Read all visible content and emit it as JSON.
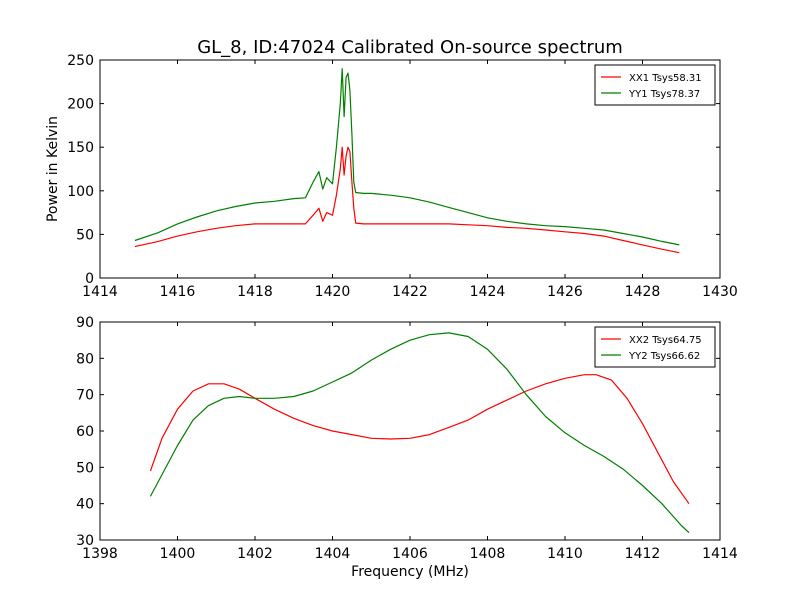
{
  "title": "GL_8, ID:47024 Calibrated On-source spectrum",
  "colors": {
    "XX": "#ff0000",
    "YY": "#008000"
  },
  "chart_data": [
    {
      "type": "line",
      "xlabel": "",
      "ylabel": "Power in Kelvin",
      "xlim": [
        1414,
        1430
      ],
      "ylim": [
        0,
        250
      ],
      "xticks": [
        "1414",
        "1416",
        "1418",
        "1420",
        "1422",
        "1424",
        "1426",
        "1428",
        "1430"
      ],
      "yticks": [
        "0",
        "50",
        "100",
        "150",
        "200",
        "250"
      ],
      "legend_position": "top-right",
      "series": [
        {
          "name": "XX1 Tsys58.31",
          "color": "#ff0000",
          "x": [
            1414.9,
            1415.5,
            1416,
            1416.5,
            1417,
            1417.5,
            1418,
            1418.5,
            1419,
            1419.3,
            1419.5,
            1419.65,
            1419.75,
            1419.85,
            1420.0,
            1420.1,
            1420.2,
            1420.25,
            1420.3,
            1420.35,
            1420.4,
            1420.45,
            1420.5,
            1420.55,
            1420.6,
            1420.8,
            1421,
            1421.5,
            1422,
            1422.5,
            1423,
            1423.5,
            1424,
            1424.5,
            1425,
            1425.5,
            1426,
            1426.5,
            1427,
            1427.5,
            1428,
            1428.5,
            1428.95
          ],
          "y": [
            36,
            42,
            48,
            53,
            57,
            60,
            62,
            62,
            62,
            62,
            72,
            80,
            65,
            75,
            72,
            95,
            125,
            150,
            118,
            140,
            150,
            145,
            110,
            80,
            63,
            62,
            62,
            62,
            62,
            62,
            62,
            61,
            60,
            58,
            57,
            55,
            53,
            51,
            48,
            43,
            38,
            33,
            29
          ]
        },
        {
          "name": "YY1 Tsys78.37",
          "color": "#008000",
          "x": [
            1414.9,
            1415.5,
            1416,
            1416.5,
            1417,
            1417.5,
            1418,
            1418.5,
            1419,
            1419.3,
            1419.5,
            1419.65,
            1419.75,
            1419.85,
            1420.0,
            1420.1,
            1420.2,
            1420.25,
            1420.3,
            1420.35,
            1420.4,
            1420.45,
            1420.5,
            1420.55,
            1420.6,
            1420.8,
            1421,
            1421.5,
            1422,
            1422.5,
            1423,
            1423.5,
            1424,
            1424.5,
            1425,
            1425.5,
            1426,
            1426.5,
            1427,
            1427.5,
            1428,
            1428.5,
            1428.95
          ],
          "y": [
            43,
            52,
            62,
            70,
            77,
            82,
            86,
            88,
            91,
            92,
            110,
            122,
            102,
            115,
            108,
            150,
            200,
            240,
            185,
            230,
            235,
            215,
            165,
            110,
            98,
            97,
            97,
            95,
            92,
            87,
            81,
            75,
            69,
            65,
            62,
            60,
            59,
            57,
            55,
            51,
            47,
            42,
            38
          ]
        }
      ]
    },
    {
      "type": "line",
      "xlabel": "Frequency (MHz)",
      "ylabel": "",
      "xlim": [
        1398,
        1414
      ],
      "ylim": [
        30,
        90
      ],
      "xticks": [
        "1398",
        "1400",
        "1402",
        "1404",
        "1406",
        "1408",
        "1410",
        "1412",
        "1414"
      ],
      "yticks": [
        "30",
        "40",
        "50",
        "60",
        "70",
        "80",
        "90"
      ],
      "legend_position": "top-right",
      "series": [
        {
          "name": "XX2 Tsys64.75",
          "color": "#ff0000",
          "x": [
            1399.3,
            1399.6,
            1400,
            1400.4,
            1400.8,
            1401.2,
            1401.6,
            1402,
            1402.5,
            1403,
            1403.5,
            1404,
            1404.5,
            1405,
            1405.5,
            1406,
            1406.5,
            1407,
            1407.5,
            1408,
            1408.5,
            1409,
            1409.5,
            1410,
            1410.5,
            1410.8,
            1411.2,
            1411.6,
            1412,
            1412.4,
            1412.8,
            1413.2
          ],
          "y": [
            49,
            58,
            66,
            71,
            73,
            73,
            71.5,
            69,
            66,
            63.5,
            61.5,
            60,
            59,
            58,
            57.8,
            58,
            59,
            61,
            63,
            66,
            68.5,
            71,
            73,
            74.5,
            75.5,
            75.5,
            74,
            69,
            62,
            54,
            46,
            40
          ]
        },
        {
          "name": "YY2 Tsys66.62",
          "color": "#008000",
          "x": [
            1399.3,
            1399.6,
            1400,
            1400.4,
            1400.8,
            1401.2,
            1401.6,
            1402,
            1402.5,
            1403,
            1403.5,
            1404,
            1404.5,
            1405,
            1405.5,
            1406,
            1406.5,
            1407,
            1407.5,
            1408,
            1408.5,
            1409,
            1409.5,
            1410,
            1410.5,
            1411,
            1411.5,
            1412,
            1412.5,
            1413,
            1413.2
          ],
          "y": [
            42,
            48,
            56,
            63,
            67,
            69,
            69.5,
            69,
            69,
            69.5,
            71,
            73.5,
            76,
            79.5,
            82.5,
            85,
            86.5,
            87,
            86,
            82.5,
            77,
            70,
            64,
            59.5,
            56,
            53,
            49.5,
            45,
            40,
            34,
            32
          ]
        }
      ]
    }
  ]
}
